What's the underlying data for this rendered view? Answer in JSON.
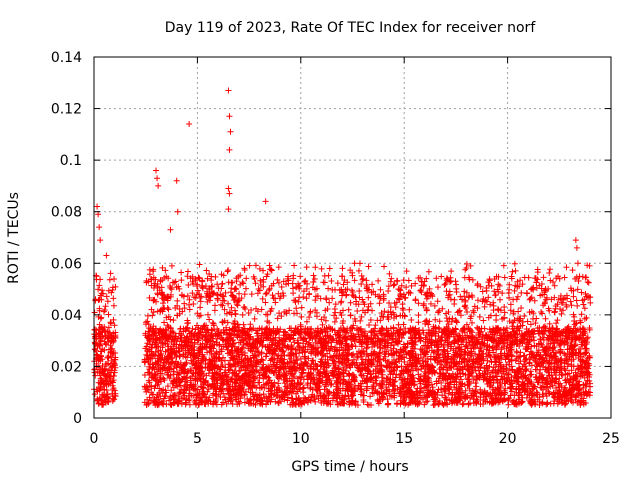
{
  "chart_data": {
    "type": "scatter",
    "title": "Day 119 of 2023, Rate Of TEC Index for receiver norf",
    "xlabel": "GPS time / hours",
    "ylabel": "ROTI / TECUs",
    "xlim": [
      0,
      25
    ],
    "ylim": [
      0,
      0.14
    ],
    "xticks": [
      0,
      5,
      10,
      15,
      20,
      25
    ],
    "xtick_labels": [
      "0",
      "5",
      "10",
      "15",
      "20",
      "25"
    ],
    "yticks": [
      0,
      0.02,
      0.04,
      0.06,
      0.08,
      0.1,
      0.12,
      0.14
    ],
    "ytick_labels": [
      "0",
      "0.02",
      "0.04",
      "0.06",
      "0.08",
      "0.1",
      "0.12",
      "0.14"
    ],
    "grid": true,
    "marker": "+",
    "series_color": "#ff0000",
    "coverage": [
      [
        0.0,
        1.05
      ],
      [
        2.45,
        24.0
      ]
    ],
    "notable_points": [
      {
        "x": 0.15,
        "y": 0.082
      },
      {
        "x": 0.2,
        "y": 0.079
      },
      {
        "x": 0.25,
        "y": 0.074
      },
      {
        "x": 0.3,
        "y": 0.069
      },
      {
        "x": 0.6,
        "y": 0.063
      },
      {
        "x": 3.0,
        "y": 0.096
      },
      {
        "x": 3.05,
        "y": 0.093
      },
      {
        "x": 3.1,
        "y": 0.09
      },
      {
        "x": 3.7,
        "y": 0.073
      },
      {
        "x": 4.0,
        "y": 0.092
      },
      {
        "x": 4.05,
        "y": 0.08
      },
      {
        "x": 4.6,
        "y": 0.114
      },
      {
        "x": 6.5,
        "y": 0.127
      },
      {
        "x": 6.55,
        "y": 0.117
      },
      {
        "x": 6.6,
        "y": 0.111
      },
      {
        "x": 6.55,
        "y": 0.104
      },
      {
        "x": 6.5,
        "y": 0.089
      },
      {
        "x": 6.55,
        "y": 0.087
      },
      {
        "x": 6.5,
        "y": 0.081
      },
      {
        "x": 8.3,
        "y": 0.084
      },
      {
        "x": 12.6,
        "y": 0.06
      },
      {
        "x": 23.3,
        "y": 0.069
      },
      {
        "x": 23.35,
        "y": 0.066
      },
      {
        "x": 23.4,
        "y": 0.06
      }
    ],
    "typical_range": [
      0.005,
      0.035
    ]
  }
}
